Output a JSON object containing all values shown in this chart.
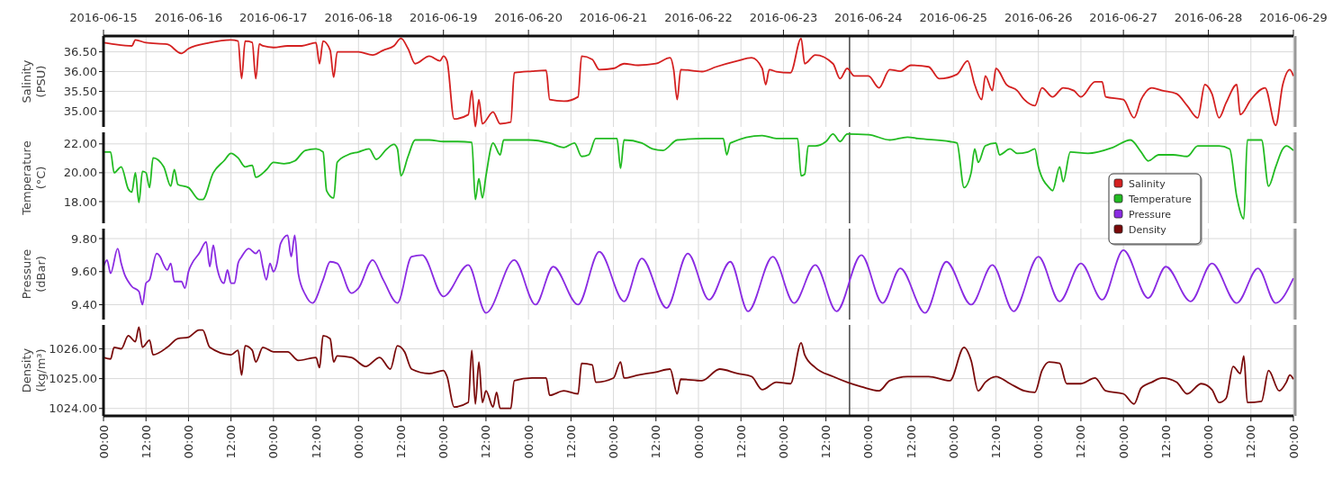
{
  "chart_data": [
    {
      "type": "line",
      "ylabel": "Salinity (PSU)",
      "xlim": [
        "2016-06-15T00:00",
        "2016-06-29T00:00"
      ],
      "ylim": [
        34.6,
        36.9
      ],
      "yticks": [
        {
          "value": 35,
          "label": "35.00"
        },
        {
          "value": 35.5,
          "label": "35.50"
        },
        {
          "value": 36,
          "label": "36.00"
        },
        {
          "value": 36.5,
          "label": "36.50"
        }
      ],
      "x2lim": [
        "2016-06-15T00:00",
        "2016-06-29T00:00"
      ],
      "x2ticks": [
        "2016-06-15",
        "2016-06-16",
        "2016-06-17",
        "2016-06-18",
        "2016-06-19",
        "2016-06-20",
        "2016-06-21",
        "2016-06-22",
        "2016-06-23",
        "2016-06-24",
        "2016-06-25",
        "2016-06-26",
        "2016-06-27",
        "2016-06-28",
        "2016-06-29"
      ],
      "xticks": [
        {
          "value": "2016-06-15T00:00",
          "label": null
        },
        {
          "value": "2016-06-15T12:00",
          "label": null
        },
        {
          "value": "2016-06-16T00:00",
          "label": null
        },
        {
          "value": "2016-06-16T12:00",
          "label": null
        },
        {
          "value": "2016-06-17T00:00",
          "label": null
        },
        {
          "value": "2016-06-17T12:00",
          "label": null
        },
        {
          "value": "2016-06-18T00:00",
          "label": null
        },
        {
          "value": "2016-06-18T12:00",
          "label": null
        },
        {
          "value": "2016-06-19T00:00",
          "label": null
        },
        {
          "value": "2016-06-19T12:00",
          "label": null
        },
        {
          "value": "2016-06-20T00:00",
          "label": null
        },
        {
          "value": "2016-06-20T12:00",
          "label": null
        },
        {
          "value": "2016-06-21T00:00",
          "label": null
        },
        {
          "value": "2016-06-21T12:00",
          "label": null
        },
        {
          "value": "2016-06-22T00:00",
          "label": null
        },
        {
          "value": "2016-06-22T12:00",
          "label": null
        },
        {
          "value": "2016-06-23T00:00",
          "label": null
        },
        {
          "value": "2016-06-23T12:00",
          "label": null
        },
        {
          "value": "2016-06-24T00:00",
          "label": null
        },
        {
          "value": "2016-06-24T12:00",
          "label": null
        },
        {
          "value": "2016-06-25T00:00",
          "label": null
        },
        {
          "value": "2016-06-25T12:00",
          "label": null
        },
        {
          "value": "2016-06-26T00:00",
          "label": null
        },
        {
          "value": "2016-06-26T12:00",
          "label": null
        },
        {
          "value": "2016-06-27T00:00",
          "label": null
        },
        {
          "value": "2016-06-27T12:00",
          "label": null
        },
        {
          "value": "2016-06-28T00:00",
          "label": null
        },
        {
          "value": "2016-06-28T12:00",
          "label": null
        },
        {
          "value": "2016-06-29T00:00",
          "label": null
        }
      ],
      "tick_labels": "y",
      "grid": true,
      "legend": "right",
      "ref_lines": [
        {
          "axis": "x",
          "value": "2016-06-23T18:40"
        }
      ],
      "series": [
        {
          "name": "Salinity",
          "color": "#d42020",
          "x": [
            "2016-06-15T00:00",
            "2016-06-15T03:00",
            "2016-06-15T08:00",
            "2016-06-15T09:00",
            "2016-06-15T12:00",
            "2016-06-15T18:00",
            "2016-06-15T22:00",
            "2016-06-16T00:00",
            "2016-06-16T06:00",
            "2016-06-16T12:00",
            "2016-06-16T14:00",
            "2016-06-16T15:00",
            "2016-06-16T16:00",
            "2016-06-16T18:00",
            "2016-06-16T19:00",
            "2016-06-16T20:00",
            "2016-06-16T21:00",
            "2016-06-17T00:00",
            "2016-06-17T04:00",
            "2016-06-17T08:00",
            "2016-06-17T12:00",
            "2016-06-17T13:00",
            "2016-06-17T14:00",
            "2016-06-17T16:00",
            "2016-06-17T17:00",
            "2016-06-17T18:00",
            "2016-06-18T00:00",
            "2016-06-18T04:00",
            "2016-06-18T07:00",
            "2016-06-18T10:00",
            "2016-06-18T12:00",
            "2016-06-18T14:00",
            "2016-06-18T16:00",
            "2016-06-18T20:00",
            "2016-06-18T23:00",
            "2016-06-19T00:00",
            "2016-06-19T01:00",
            "2016-06-19T03:00",
            "2016-06-19T07:00",
            "2016-06-19T08:00",
            "2016-06-19T09:00",
            "2016-06-19T10:00",
            "2016-06-19T11:00",
            "2016-06-19T14:00",
            "2016-06-19T16:00",
            "2016-06-19T19:00",
            "2016-06-19T20:00",
            "2016-06-20T01:00",
            "2016-06-20T05:00",
            "2016-06-20T06:00",
            "2016-06-20T10:00",
            "2016-06-20T14:00",
            "2016-06-20T15:00",
            "2016-06-20T18:00",
            "2016-06-20T20:00",
            "2016-06-21T00:00",
            "2016-06-21T03:00",
            "2016-06-21T07:00",
            "2016-06-21T12:00",
            "2016-06-21T16:00",
            "2016-06-21T17:00",
            "2016-06-21T18:00",
            "2016-06-21T19:00",
            "2016-06-22T01:00",
            "2016-06-22T05:00",
            "2016-06-22T11:00",
            "2016-06-22T15:00",
            "2016-06-22T18:00",
            "2016-06-22T19:00",
            "2016-06-22T20:00",
            "2016-06-22T22:00",
            "2016-06-23T02:00",
            "2016-06-23T05:00",
            "2016-06-23T06:00",
            "2016-06-23T09:00",
            "2016-06-23T14:00",
            "2016-06-23T16:00",
            "2016-06-23T18:00",
            "2016-06-23T20:00",
            "2016-06-24T00:00",
            "2016-06-24T03:00",
            "2016-06-24T06:00",
            "2016-06-24T09:00",
            "2016-06-24T12:00",
            "2016-06-24T17:00",
            "2016-06-24T20:00",
            "2016-06-25T01:00",
            "2016-06-25T04:00",
            "2016-06-25T06:00",
            "2016-06-25T08:00",
            "2016-06-25T09:00",
            "2016-06-25T11:00",
            "2016-06-25T12:00",
            "2016-06-25T15:00",
            "2016-06-25T18:00",
            "2016-06-25T20:00",
            "2016-06-25T23:00",
            "2016-06-26T01:00",
            "2016-06-26T04:00",
            "2016-06-26T07:00",
            "2016-06-26T10:00",
            "2016-06-26T12:00",
            "2016-06-26T16:00",
            "2016-06-26T18:00",
            "2016-06-26T19:00",
            "2016-06-27T00:00",
            "2016-06-27T03:00",
            "2016-06-27T05:00",
            "2016-06-27T08:00",
            "2016-06-27T11:00",
            "2016-06-27T15:00",
            "2016-06-27T18:00",
            "2016-06-27T21:00",
            "2016-06-27T23:00",
            "2016-06-28T01:00",
            "2016-06-28T03:00",
            "2016-06-28T05:00",
            "2016-06-28T08:00",
            "2016-06-28T09:00",
            "2016-06-28T12:00",
            "2016-06-28T16:00",
            "2016-06-28T19:00",
            "2016-06-28T21:00",
            "2016-06-28T23:00",
            "2016-06-29T00:00"
          ],
          "values": [
            36.73,
            36.69,
            36.65,
            36.8,
            36.73,
            36.69,
            36.46,
            36.58,
            36.73,
            36.8,
            36.77,
            35.82,
            36.77,
            36.74,
            35.82,
            36.7,
            36.65,
            36.61,
            36.65,
            36.65,
            36.73,
            36.2,
            36.77,
            36.54,
            35.86,
            36.5,
            36.5,
            36.42,
            36.54,
            36.65,
            36.84,
            36.58,
            36.2,
            36.39,
            36.27,
            36.39,
            36.27,
            34.8,
            34.91,
            35.52,
            34.61,
            35.29,
            34.68,
            34.98,
            34.68,
            34.72,
            35.97,
            36.01,
            36.03,
            35.29,
            35.25,
            35.36,
            36.39,
            36.31,
            36.05,
            36.08,
            36.2,
            36.16,
            36.2,
            36.35,
            36.05,
            35.29,
            36.05,
            36.0,
            36.12,
            36.27,
            36.35,
            36.08,
            35.67,
            36.05,
            36.0,
            35.97,
            36.84,
            36.2,
            36.42,
            36.2,
            35.82,
            36.08,
            35.89,
            35.89,
            35.59,
            36.05,
            36.01,
            36.16,
            36.12,
            35.82,
            35.93,
            36.27,
            35.67,
            35.29,
            35.89,
            35.52,
            36.08,
            35.67,
            35.52,
            35.29,
            35.14,
            35.59,
            35.36,
            35.59,
            35.52,
            35.36,
            35.74,
            35.74,
            35.36,
            35.29,
            34.83,
            35.29,
            35.59,
            35.52,
            35.44,
            35.14,
            34.83,
            35.67,
            35.44,
            34.83,
            35.21,
            35.67,
            34.91,
            35.29,
            35.59,
            34.64,
            35.67,
            36.05,
            35.89
          ]
        }
      ]
    },
    {
      "type": "line",
      "ylabel": "Temperature (°C)",
      "xlim": [
        "2016-06-15T00:00",
        "2016-06-29T00:00"
      ],
      "ylim": [
        16.5,
        22.8
      ],
      "yticks": [
        {
          "value": 18,
          "label": "18.00"
        },
        {
          "value": 20,
          "label": "20.00"
        },
        {
          "value": 22,
          "label": "22.00"
        }
      ],
      "xticks": [
        {
          "value": "2016-06-15T00:00",
          "label": null
        },
        {
          "value": "2016-06-15T12:00",
          "label": null
        },
        {
          "value": "2016-06-16T00:00",
          "label": null
        },
        {
          "value": "2016-06-16T12:00",
          "label": null
        },
        {
          "value": "2016-06-17T00:00",
          "label": null
        },
        {
          "value": "2016-06-17T12:00",
          "label": null
        },
        {
          "value": "2016-06-18T00:00",
          "label": null
        },
        {
          "value": "2016-06-18T12:00",
          "label": null
        },
        {
          "value": "2016-06-19T00:00",
          "label": null
        },
        {
          "value": "2016-06-19T12:00",
          "label": null
        },
        {
          "value": "2016-06-20T00:00",
          "label": null
        },
        {
          "value": "2016-06-20T12:00",
          "label": null
        },
        {
          "value": "2016-06-21T00:00",
          "label": null
        },
        {
          "value": "2016-06-21T12:00",
          "label": null
        },
        {
          "value": "2016-06-22T00:00",
          "label": null
        },
        {
          "value": "2016-06-22T12:00",
          "label": null
        },
        {
          "value": "2016-06-23T00:00",
          "label": null
        },
        {
          "value": "2016-06-23T12:00",
          "label": null
        },
        {
          "value": "2016-06-24T00:00",
          "label": null
        },
        {
          "value": "2016-06-24T12:00",
          "label": null
        },
        {
          "value": "2016-06-25T00:00",
          "label": null
        },
        {
          "value": "2016-06-25T12:00",
          "label": null
        },
        {
          "value": "2016-06-26T00:00",
          "label": null
        },
        {
          "value": "2016-06-26T12:00",
          "label": null
        },
        {
          "value": "2016-06-27T00:00",
          "label": null
        },
        {
          "value": "2016-06-27T12:00",
          "label": null
        },
        {
          "value": "2016-06-28T00:00",
          "label": null
        },
        {
          "value": "2016-06-28T12:00",
          "label": null
        },
        {
          "value": "2016-06-29T00:00",
          "label": null
        }
      ],
      "tick_labels": "y",
      "grid": true,
      "legend": "right",
      "ref_lines": [
        {
          "axis": "x",
          "value": "2016-06-23T18:40"
        }
      ],
      "series": [
        {
          "name": "Temperature",
          "color": "#22bb22",
          "x": [
            "2016-06-15T00:00",
            "2016-06-15T02:00",
            "2016-06-15T03:00",
            "2016-06-15T05:00",
            "2016-06-15T07:00",
            "2016-06-15T08:00",
            "2016-06-15T09:00",
            "2016-06-15T10:00",
            "2016-06-15T11:00",
            "2016-06-15T12:00",
            "2016-06-15T13:00",
            "2016-06-15T14:00",
            "2016-06-15T17:00",
            "2016-06-15T19:00",
            "2016-06-15T20:00",
            "2016-06-15T21:00",
            "2016-06-16T00:00",
            "2016-06-16T03:00",
            "2016-06-16T04:00",
            "2016-06-16T07:00",
            "2016-06-16T10:00",
            "2016-06-16T12:00",
            "2016-06-16T14:00",
            "2016-06-16T16:00",
            "2016-06-16T18:00",
            "2016-06-16T19:00",
            "2016-06-16T22:00",
            "2016-06-17T00:00",
            "2016-06-17T03:00",
            "2016-06-17T06:00",
            "2016-06-17T09:00",
            "2016-06-17T12:00",
            "2016-06-17T14:00",
            "2016-06-17T15:00",
            "2016-06-17T17:00",
            "2016-06-17T18:00",
            "2016-06-17T21:00",
            "2016-06-18T00:00",
            "2016-06-18T03:00",
            "2016-06-18T05:00",
            "2016-06-18T08:00",
            "2016-06-18T10:00",
            "2016-06-18T11:00",
            "2016-06-18T12:00",
            "2016-06-18T14:00",
            "2016-06-18T16:00",
            "2016-06-18T20:00",
            "2016-06-19T00:00",
            "2016-06-19T04:00",
            "2016-06-19T08:00",
            "2016-06-19T09:00",
            "2016-06-19T10:00",
            "2016-06-19T11:00",
            "2016-06-19T12:00",
            "2016-06-19T14:00",
            "2016-06-19T16:00",
            "2016-06-19T17:00",
            "2016-06-20T00:00",
            "2016-06-20T06:00",
            "2016-06-20T10:00",
            "2016-06-20T13:00",
            "2016-06-20T15:00",
            "2016-06-20T17:00",
            "2016-06-20T19:00",
            "2016-06-21T01:00",
            "2016-06-21T02:00",
            "2016-06-21T03:00",
            "2016-06-21T08:00",
            "2016-06-21T11:00",
            "2016-06-21T14:00",
            "2016-06-21T18:00",
            "2016-06-22T02:00",
            "2016-06-22T07:00",
            "2016-06-22T08:00",
            "2016-06-22T09:00",
            "2016-06-22T18:00",
            "2016-06-22T22:00",
            "2016-06-23T04:00",
            "2016-06-23T05:00",
            "2016-06-23T06:00",
            "2016-06-23T07:00",
            "2016-06-23T09:00",
            "2016-06-23T12:00",
            "2016-06-23T14:00",
            "2016-06-23T16:00",
            "2016-06-23T18:00",
            "2016-06-24T00:00",
            "2016-06-24T06:00",
            "2016-06-24T11:00",
            "2016-06-24T14:00",
            "2016-06-24T23:00",
            "2016-06-25T01:00",
            "2016-06-25T03:00",
            "2016-06-25T05:00",
            "2016-06-25T06:00",
            "2016-06-25T07:00",
            "2016-06-25T09:00",
            "2016-06-25T12:00",
            "2016-06-25T13:00",
            "2016-06-25T16:00",
            "2016-06-25T18:00",
            "2016-06-25T21:00",
            "2016-06-25T23:00",
            "2016-06-26T00:00",
            "2016-06-26T03:00",
            "2016-06-26T04:00",
            "2016-06-26T06:00",
            "2016-06-26T07:00",
            "2016-06-26T09:00",
            "2016-06-26T14:00",
            "2016-06-26T21:00",
            "2016-06-27T02:00",
            "2016-06-27T05:00",
            "2016-06-27T07:00",
            "2016-06-27T10:00",
            "2016-06-27T14:00",
            "2016-06-27T18:00",
            "2016-06-27T21:00",
            "2016-06-28T03:00",
            "2016-06-28T06:00",
            "2016-06-28T08:00",
            "2016-06-28T10:00",
            "2016-06-28T11:00",
            "2016-06-28T15:00",
            "2016-06-28T17:00",
            "2016-06-28T19:00",
            "2016-06-28T21:00",
            "2016-06-28T22:00",
            "2016-06-29T00:00"
          ],
          "values": [
            21.44,
            21.44,
            20.0,
            20.41,
            18.87,
            18.66,
            20.0,
            17.94,
            20.1,
            20.0,
            18.97,
            21.03,
            20.41,
            19.07,
            20.21,
            19.18,
            18.97,
            18.14,
            18.14,
            20.0,
            20.82,
            21.34,
            21.03,
            20.41,
            20.52,
            19.69,
            20.21,
            20.72,
            20.62,
            20.82,
            21.55,
            21.65,
            21.44,
            18.76,
            18.25,
            20.72,
            21.24,
            21.44,
            21.65,
            20.93,
            21.65,
            21.96,
            21.65,
            19.79,
            21.13,
            22.27,
            22.27,
            22.16,
            22.16,
            22.1,
            18.14,
            19.59,
            18.25,
            19.79,
            22.06,
            21.24,
            22.27,
            22.27,
            22.06,
            21.75,
            22.06,
            21.13,
            21.24,
            22.37,
            22.37,
            20.31,
            22.27,
            22.06,
            21.65,
            21.55,
            22.27,
            22.37,
            22.37,
            21.24,
            22.06,
            22.58,
            22.37,
            22.37,
            19.79,
            19.9,
            21.86,
            21.86,
            22.16,
            22.68,
            22.16,
            22.68,
            22.64,
            22.27,
            22.47,
            22.37,
            22.16,
            22.06,
            18.97,
            20.0,
            21.65,
            20.72,
            21.86,
            22.06,
            21.24,
            21.65,
            21.34,
            21.44,
            21.65,
            20.41,
            18.97,
            18.76,
            20.41,
            19.38,
            21.44,
            21.34,
            21.75,
            22.27,
            21.44,
            20.82,
            21.24,
            21.24,
            21.13,
            21.86,
            21.86,
            21.65,
            18.35,
            16.8,
            22.27,
            22.27,
            19.07,
            20.41,
            21.65,
            21.86,
            21.55
          ]
        }
      ]
    },
    {
      "type": "line",
      "ylabel": "Pressure (dBar)",
      "xlim": [
        "2016-06-15T00:00",
        "2016-06-29T00:00"
      ],
      "ylim": [
        9.31,
        9.86
      ],
      "yticks": [
        {
          "value": 9.4,
          "label": "9.40"
        },
        {
          "value": 9.6,
          "label": "9.60"
        },
        {
          "value": 9.8,
          "label": "9.80"
        }
      ],
      "xticks": [
        {
          "value": "2016-06-15T00:00",
          "label": null
        },
        {
          "value": "2016-06-15T12:00",
          "label": null
        },
        {
          "value": "2016-06-16T00:00",
          "label": null
        },
        {
          "value": "2016-06-16T12:00",
          "label": null
        },
        {
          "value": "2016-06-17T00:00",
          "label": null
        },
        {
          "value": "2016-06-17T12:00",
          "label": null
        },
        {
          "value": "2016-06-18T00:00",
          "label": null
        },
        {
          "value": "2016-06-18T12:00",
          "label": null
        },
        {
          "value": "2016-06-19T00:00",
          "label": null
        },
        {
          "value": "2016-06-19T12:00",
          "label": null
        },
        {
          "value": "2016-06-20T00:00",
          "label": null
        },
        {
          "value": "2016-06-20T12:00",
          "label": null
        },
        {
          "value": "2016-06-21T00:00",
          "label": null
        },
        {
          "value": "2016-06-21T12:00",
          "label": null
        },
        {
          "value": "2016-06-22T00:00",
          "label": null
        },
        {
          "value": "2016-06-22T12:00",
          "label": null
        },
        {
          "value": "2016-06-23T00:00",
          "label": null
        },
        {
          "value": "2016-06-23T12:00",
          "label": null
        },
        {
          "value": "2016-06-24T00:00",
          "label": null
        },
        {
          "value": "2016-06-24T12:00",
          "label": null
        },
        {
          "value": "2016-06-25T00:00",
          "label": null
        },
        {
          "value": "2016-06-25T12:00",
          "label": null
        },
        {
          "value": "2016-06-26T00:00",
          "label": null
        },
        {
          "value": "2016-06-26T12:00",
          "label": null
        },
        {
          "value": "2016-06-27T00:00",
          "label": null
        },
        {
          "value": "2016-06-27T12:00",
          "label": null
        },
        {
          "value": "2016-06-28T00:00",
          "label": null
        },
        {
          "value": "2016-06-28T12:00",
          "label": null
        },
        {
          "value": "2016-06-29T00:00",
          "label": null
        }
      ],
      "tick_labels": "y",
      "grid": true,
      "legend": "right",
      "ref_lines": [
        {
          "axis": "x",
          "value": "2016-06-23T18:40"
        }
      ],
      "series": [
        {
          "name": "Pressure",
          "color": "#8a2be2",
          "x": [
            "2016-06-15T00:00",
            "2016-06-15T01:00",
            "2016-06-15T02:00",
            "2016-06-15T04:00",
            "2016-06-15T05:00",
            "2016-06-15T06:00",
            "2016-06-15T07:00",
            "2016-06-15T08:00",
            "2016-06-15T10:00",
            "2016-06-15T11:00",
            "2016-06-15T12:00",
            "2016-06-15T13:00",
            "2016-06-15T15:00",
            "2016-06-15T16:00",
            "2016-06-15T17:00",
            "2016-06-15T18:00",
            "2016-06-15T19:00",
            "2016-06-15T20:00",
            "2016-06-15T22:00",
            "2016-06-15T23:00",
            "2016-06-16T00:00",
            "2016-06-16T01:00",
            "2016-06-16T03:00",
            "2016-06-16T05:00",
            "2016-06-16T06:00",
            "2016-06-16T07:00",
            "2016-06-16T08:00",
            "2016-06-16T10:00",
            "2016-06-16T11:00",
            "2016-06-16T12:00",
            "2016-06-16T13:00",
            "2016-06-16T14:00",
            "2016-06-16T15:00",
            "2016-06-16T17:00",
            "2016-06-16T19:00",
            "2016-06-16T20:00",
            "2016-06-16T21:00",
            "2016-06-16T22:00",
            "2016-06-16T23:00",
            "2016-06-17T00:00",
            "2016-06-17T01:00",
            "2016-06-17T02:00",
            "2016-06-17T04:00",
            "2016-06-17T05:00",
            "2016-06-17T06:00",
            "2016-06-17T07:00",
            "2016-06-17T09:00",
            "2016-06-17T11:00",
            "2016-06-17T14:00",
            "2016-06-17T16:00",
            "2016-06-17T18:00",
            "2016-06-17T22:00",
            "2016-06-18T00:00",
            "2016-06-18T04:00",
            "2016-06-18T07:00",
            "2016-06-18T11:00",
            "2016-06-18T15:00",
            "2016-06-18T18:00",
            "2016-06-19T00:00",
            "2016-06-19T07:00",
            "2016-06-19T12:00",
            "2016-06-19T20:00",
            "2016-06-20T02:00",
            "2016-06-20T07:00",
            "2016-06-20T14:00",
            "2016-06-20T20:00",
            "2016-06-21T03:00",
            "2016-06-21T08:00",
            "2016-06-21T15:00",
            "2016-06-21T21:00",
            "2016-06-22T03:00",
            "2016-06-22T09:00",
            "2016-06-22T14:00",
            "2016-06-22T21:00",
            "2016-06-23T03:00",
            "2016-06-23T09:00",
            "2016-06-23T15:00",
            "2016-06-23T22:00",
            "2016-06-24T04:00",
            "2016-06-24T09:00",
            "2016-06-24T16:00",
            "2016-06-24T22:00",
            "2016-06-25T05:00",
            "2016-06-25T11:00",
            "2016-06-25T17:00",
            "2016-06-26T00:00",
            "2016-06-26T06:00",
            "2016-06-26T12:00",
            "2016-06-26T18:00",
            "2016-06-27T00:00",
            "2016-06-27T07:00",
            "2016-06-27T12:00",
            "2016-06-27T19:00",
            "2016-06-28T01:00",
            "2016-06-28T08:00",
            "2016-06-28T14:00",
            "2016-06-28T19:00",
            "2016-06-29T00:00"
          ],
          "values": [
            9.63,
            9.67,
            9.59,
            9.74,
            9.65,
            9.58,
            9.54,
            9.51,
            9.48,
            9.4,
            9.53,
            9.55,
            9.71,
            9.69,
            9.64,
            9.61,
            9.65,
            9.54,
            9.54,
            9.5,
            9.6,
            9.65,
            9.71,
            9.78,
            9.63,
            9.76,
            9.63,
            9.53,
            9.61,
            9.53,
            9.53,
            9.65,
            9.69,
            9.74,
            9.71,
            9.73,
            9.63,
            9.55,
            9.65,
            9.6,
            9.65,
            9.77,
            9.82,
            9.69,
            9.82,
            9.59,
            9.46,
            9.41,
            9.55,
            9.66,
            9.65,
            9.47,
            9.5,
            9.67,
            9.55,
            9.41,
            9.69,
            9.7,
            9.45,
            9.64,
            9.35,
            9.67,
            9.4,
            9.63,
            9.4,
            9.72,
            9.42,
            9.68,
            9.38,
            9.71,
            9.43,
            9.66,
            9.36,
            9.69,
            9.41,
            9.64,
            9.36,
            9.7,
            9.41,
            9.62,
            9.35,
            9.66,
            9.4,
            9.64,
            9.36,
            9.69,
            9.42,
            9.65,
            9.43,
            9.73,
            9.44,
            9.63,
            9.42,
            9.65,
            9.41,
            9.62,
            9.41,
            9.56
          ]
        }
      ]
    },
    {
      "type": "line",
      "ylabel": "Density (kg/m³)",
      "xlim": [
        "2016-06-15T00:00",
        "2016-06-29T00:00"
      ],
      "ylim": [
        1023.75,
        1026.8
      ],
      "yticks": [
        {
          "value": 1024,
          "label": "1024.00"
        },
        {
          "value": 1025,
          "label": "1025.00"
        },
        {
          "value": 1026,
          "label": "1026.00"
        }
      ],
      "xticks": [
        {
          "value": "2016-06-15T00:00",
          "label": "00:00"
        },
        {
          "value": "2016-06-15T12:00",
          "label": "12:00"
        },
        {
          "value": "2016-06-16T00:00",
          "label": "00:00"
        },
        {
          "value": "2016-06-16T12:00",
          "label": "12:00"
        },
        {
          "value": "2016-06-17T00:00",
          "label": "00:00"
        },
        {
          "value": "2016-06-17T12:00",
          "label": "12:00"
        },
        {
          "value": "2016-06-18T00:00",
          "label": "00:00"
        },
        {
          "value": "2016-06-18T12:00",
          "label": "12:00"
        },
        {
          "value": "2016-06-19T00:00",
          "label": "00:00"
        },
        {
          "value": "2016-06-19T12:00",
          "label": "12:00"
        },
        {
          "value": "2016-06-20T00:00",
          "label": "00:00"
        },
        {
          "value": "2016-06-20T12:00",
          "label": "12:00"
        },
        {
          "value": "2016-06-21T00:00",
          "label": "00:00"
        },
        {
          "value": "2016-06-21T12:00",
          "label": "12:00"
        },
        {
          "value": "2016-06-22T00:00",
          "label": "00:00"
        },
        {
          "value": "2016-06-22T12:00",
          "label": "12:00"
        },
        {
          "value": "2016-06-23T00:00",
          "label": "00:00"
        },
        {
          "value": "2016-06-23T12:00",
          "label": "12:00"
        },
        {
          "value": "2016-06-24T00:00",
          "label": "00:00"
        },
        {
          "value": "2016-06-24T12:00",
          "label": "12:00"
        },
        {
          "value": "2016-06-25T00:00",
          "label": "00:00"
        },
        {
          "value": "2016-06-25T12:00",
          "label": "12:00"
        },
        {
          "value": "2016-06-26T00:00",
          "label": "00:00"
        },
        {
          "value": "2016-06-26T12:00",
          "label": "12:00"
        },
        {
          "value": "2016-06-27T00:00",
          "label": "00:00"
        },
        {
          "value": "2016-06-27T12:00",
          "label": "12:00"
        },
        {
          "value": "2016-06-28T00:00",
          "label": "00:00"
        },
        {
          "value": "2016-06-28T12:00",
          "label": "12:00"
        },
        {
          "value": "2016-06-29T00:00",
          "label": "00:00"
        }
      ],
      "grid": true,
      "legend": "right",
      "ref_lines": [
        {
          "axis": "x",
          "value": "2016-06-23T18:40"
        }
      ],
      "series": [
        {
          "name": "Density",
          "color": "#7a0a0a",
          "x": [
            "2016-06-15T00:00",
            "2016-06-15T02:00",
            "2016-06-15T03:00",
            "2016-06-15T05:00",
            "2016-06-15T07:00",
            "2016-06-15T09:00",
            "2016-06-15T10:00",
            "2016-06-15T11:00",
            "2016-06-15T13:00",
            "2016-06-15T14:00",
            "2016-06-15T18:00",
            "2016-06-15T21:00",
            "2016-06-16T00:00",
            "2016-06-16T03:00",
            "2016-06-16T04:00",
            "2016-06-16T06:00",
            "2016-06-16T12:00",
            "2016-06-16T14:00",
            "2016-06-16T15:00",
            "2016-06-16T16:00",
            "2016-06-16T18:00",
            "2016-06-16T19:00",
            "2016-06-16T21:00",
            "2016-06-17T00:00",
            "2016-06-17T04:00",
            "2016-06-17T07:00",
            "2016-06-17T12:00",
            "2016-06-17T13:00",
            "2016-06-17T14:00",
            "2016-06-17T16:00",
            "2016-06-17T17:00",
            "2016-06-17T18:00",
            "2016-06-17T22:00",
            "2016-06-18T02:00",
            "2016-06-18T06:00",
            "2016-06-18T09:00",
            "2016-06-18T11:00",
            "2016-06-18T13:00",
            "2016-06-18T15:00",
            "2016-06-18T20:00",
            "2016-06-19T00:00",
            "2016-06-19T01:00",
            "2016-06-19T03:00",
            "2016-06-19T07:00",
            "2016-06-19T08:00",
            "2016-06-19T09:00",
            "2016-06-19T10:00",
            "2016-06-19T11:00",
            "2016-06-19T12:00",
            "2016-06-19T14:00",
            "2016-06-19T15:00",
            "2016-06-19T16:00",
            "2016-06-19T19:00",
            "2016-06-19T20:00",
            "2016-06-20T01:00",
            "2016-06-20T05:00",
            "2016-06-20T06:00",
            "2016-06-20T10:00",
            "2016-06-20T14:00",
            "2016-06-20T15:00",
            "2016-06-20T18:00",
            "2016-06-20T19:00",
            "2016-06-21T00:00",
            "2016-06-21T02:00",
            "2016-06-21T03:00",
            "2016-06-21T07:00",
            "2016-06-21T12:00",
            "2016-06-21T16:00",
            "2016-06-21T18:00",
            "2016-06-21T19:00",
            "2016-06-22T01:00",
            "2016-06-22T06:00",
            "2016-06-22T11:00",
            "2016-06-22T15:00",
            "2016-06-22T18:00",
            "2016-06-22T22:00",
            "2016-06-23T02:00",
            "2016-06-23T05:00",
            "2016-06-23T06:00",
            "2016-06-23T09:00",
            "2016-06-23T14:00",
            "2016-06-23T18:00",
            "2016-06-23T22:00",
            "2016-06-24T03:00",
            "2016-06-24T06:00",
            "2016-06-24T11:00",
            "2016-06-24T17:00",
            "2016-06-24T23:00",
            "2016-06-25T03:00",
            "2016-06-25T05:00",
            "2016-06-25T07:00",
            "2016-06-25T09:00",
            "2016-06-25T12:00",
            "2016-06-25T16:00",
            "2016-06-25T20:00",
            "2016-06-25T23:00",
            "2016-06-26T01:00",
            "2016-06-26T03:00",
            "2016-06-26T06:00",
            "2016-06-26T08:00",
            "2016-06-26T12:00",
            "2016-06-26T16:00",
            "2016-06-26T19:00",
            "2016-06-27T00:00",
            "2016-06-27T03:00",
            "2016-06-27T05:00",
            "2016-06-27T08:00",
            "2016-06-27T11:00",
            "2016-06-27T15:00",
            "2016-06-27T18:00",
            "2016-06-27T22:00",
            "2016-06-28T01:00",
            "2016-06-28T03:00",
            "2016-06-28T05:00",
            "2016-06-28T07:00",
            "2016-06-28T09:00",
            "2016-06-28T10:00",
            "2016-06-28T11:00",
            "2016-06-28T15:00",
            "2016-06-28T17:00",
            "2016-06-28T20:00",
            "2016-06-28T22:00",
            "2016-06-28T23:00",
            "2016-06-29T00:00"
          ],
          "values": [
            1025.71,
            1025.66,
            1026.05,
            1026.0,
            1026.44,
            1026.24,
            1026.73,
            1026.05,
            1026.29,
            1025.8,
            1026.05,
            1026.34,
            1026.39,
            1026.63,
            1026.63,
            1026.05,
            1025.8,
            1025.95,
            1025.12,
            1026.1,
            1025.95,
            1025.56,
            1026.05,
            1025.9,
            1025.9,
            1025.61,
            1025.71,
            1025.37,
            1026.44,
            1026.34,
            1025.56,
            1025.76,
            1025.71,
            1025.41,
            1025.71,
            1025.32,
            1026.1,
            1025.9,
            1025.32,
            1025.17,
            1025.27,
            1025.07,
            1024.05,
            1024.2,
            1025.95,
            1024.15,
            1025.56,
            1024.2,
            1024.59,
            1024.05,
            1024.54,
            1024.0,
            1024.0,
            1024.93,
            1025.02,
            1025.02,
            1024.44,
            1024.59,
            1024.49,
            1025.51,
            1025.46,
            1024.88,
            1025.02,
            1025.56,
            1025.02,
            1025.12,
            1025.22,
            1025.32,
            1024.49,
            1024.98,
            1024.93,
            1025.32,
            1025.17,
            1025.07,
            1024.63,
            1024.88,
            1024.83,
            1026.2,
            1025.8,
            1025.37,
            1025.07,
            1024.88,
            1024.73,
            1024.59,
            1024.93,
            1025.07,
            1025.07,
            1024.93,
            1026.05,
            1025.61,
            1024.59,
            1024.88,
            1025.07,
            1024.83,
            1024.59,
            1024.54,
            1025.27,
            1025.56,
            1025.51,
            1024.83,
            1024.83,
            1025.02,
            1024.59,
            1024.49,
            1024.15,
            1024.68,
            1024.88,
            1025.02,
            1024.88,
            1024.49,
            1024.83,
            1024.63,
            1024.2,
            1024.34,
            1025.41,
            1025.17,
            1025.76,
            1024.2,
            1024.24,
            1025.27,
            1024.59,
            1024.88,
            1025.12,
            1024.98
          ]
        }
      ]
    }
  ]
}
